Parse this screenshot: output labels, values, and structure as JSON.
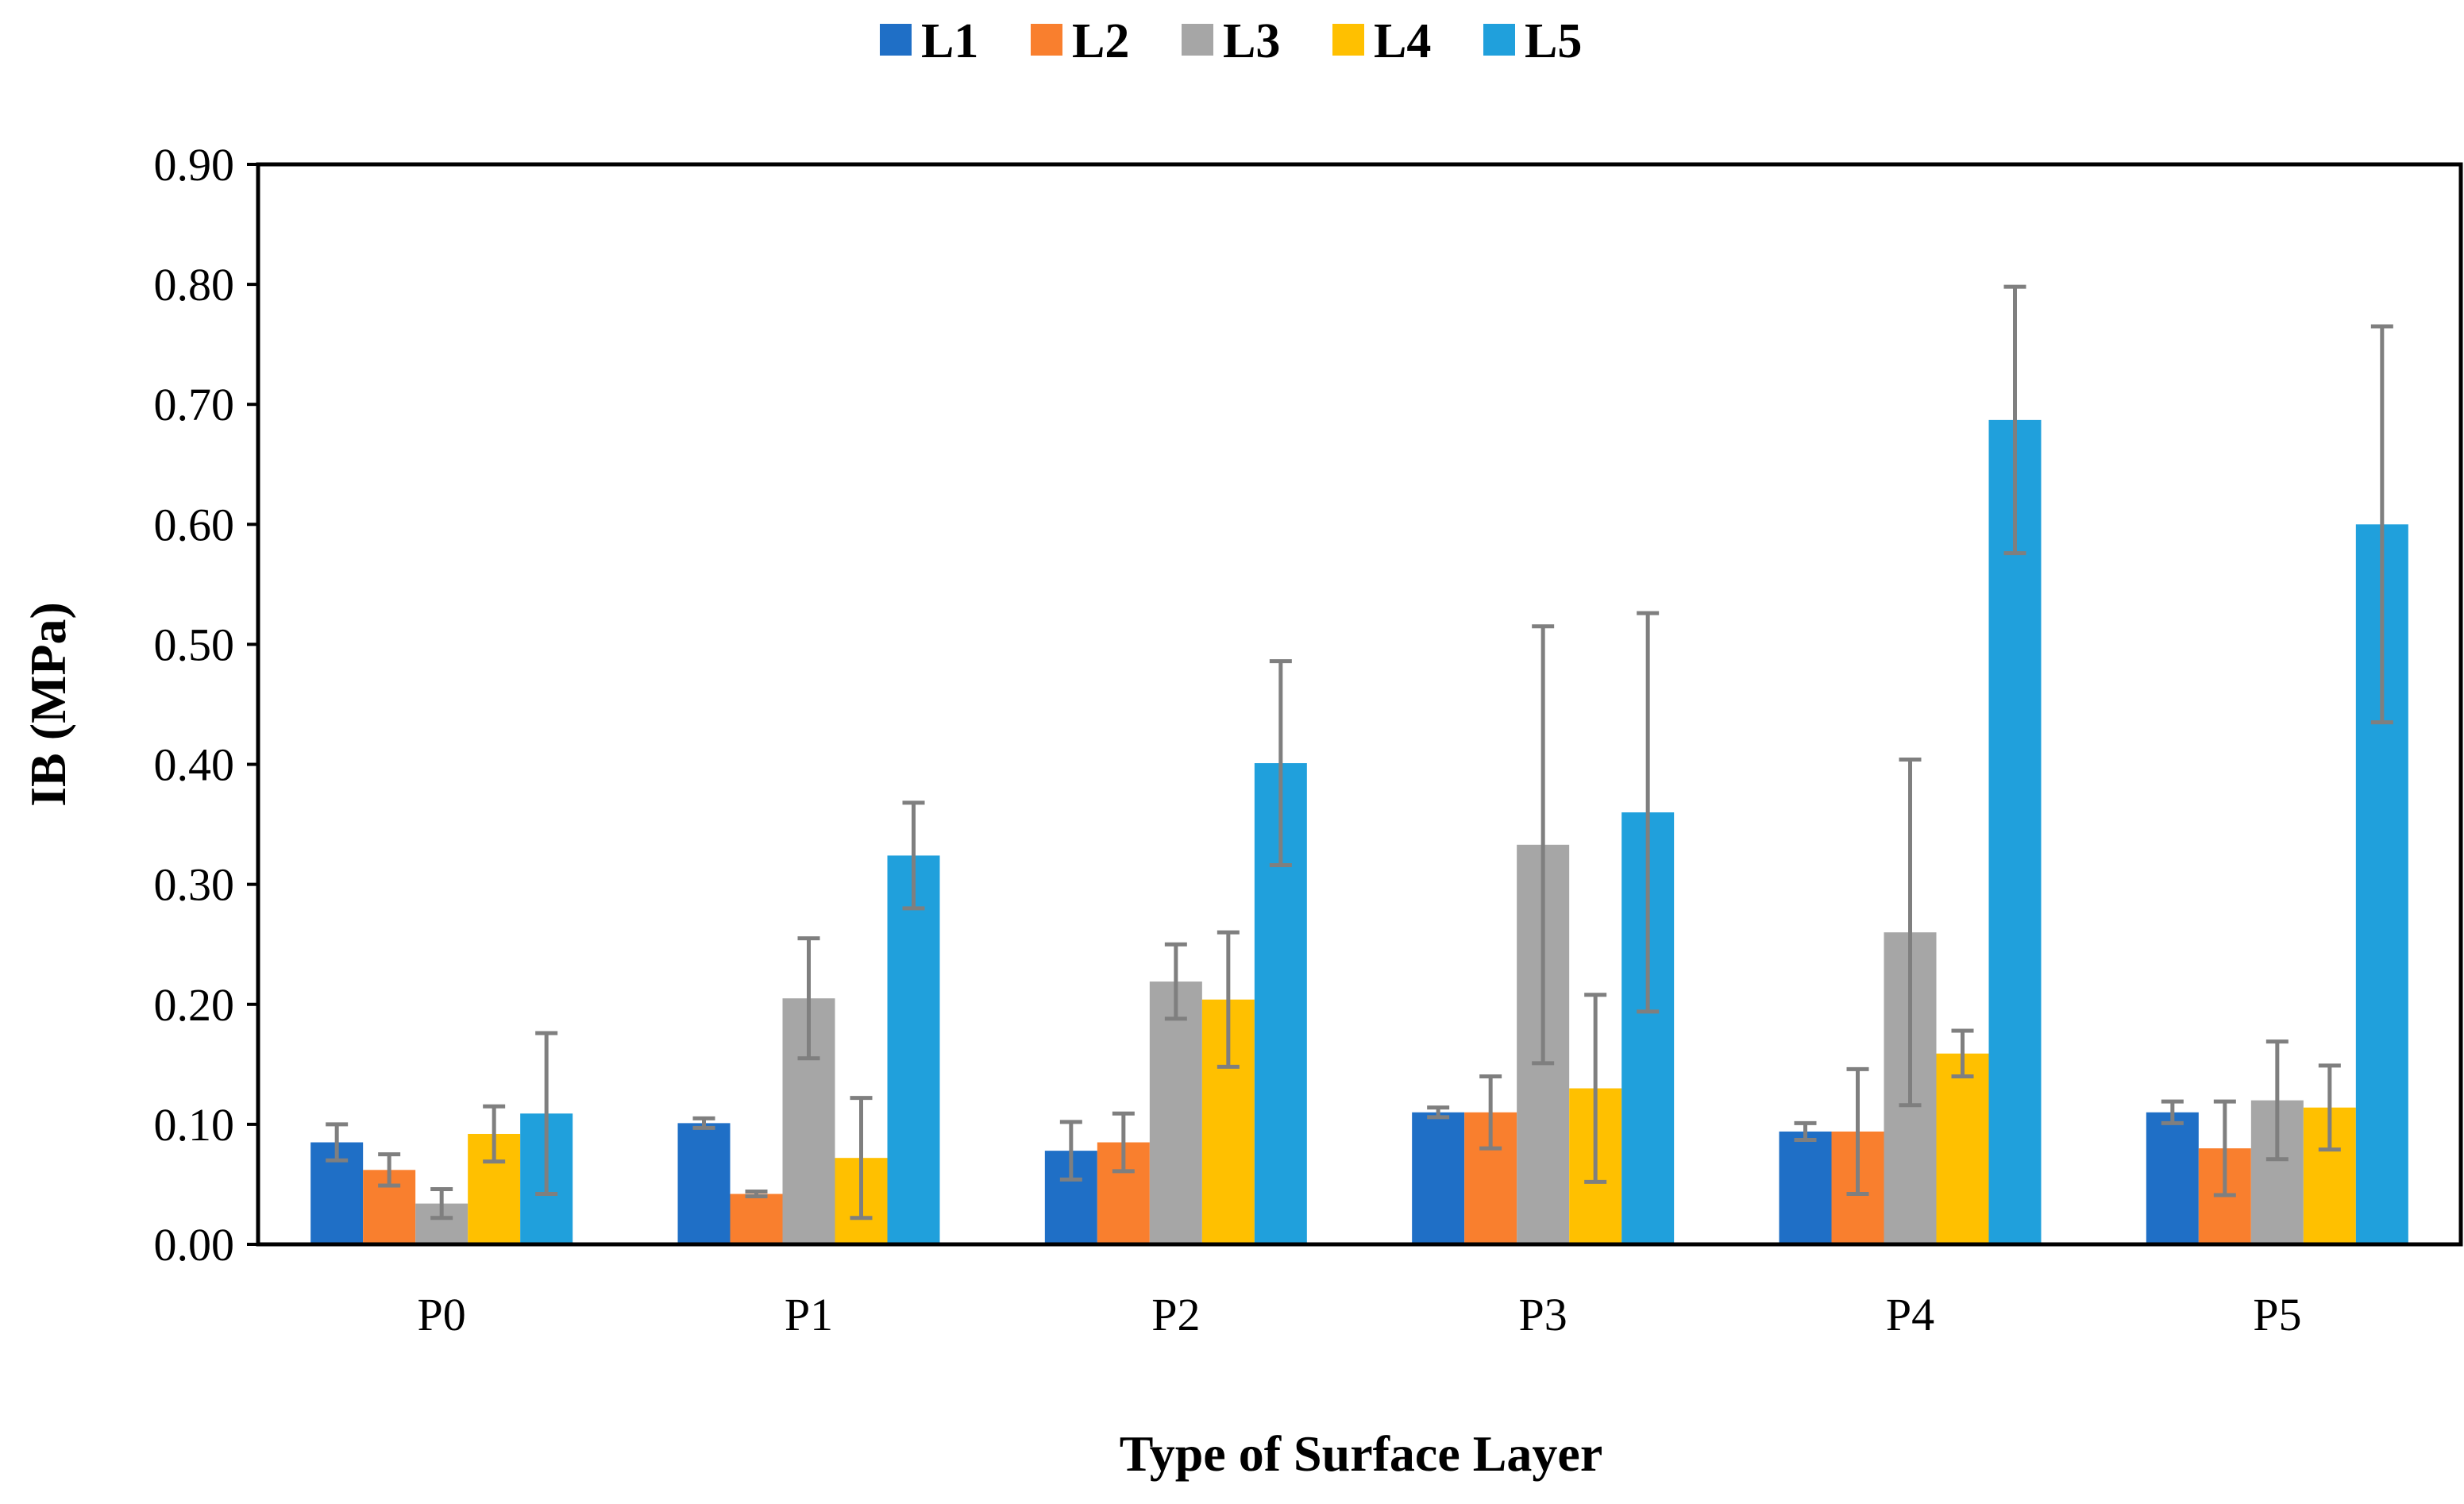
{
  "chart_data": {
    "type": "bar",
    "title": "",
    "xlabel": "Type of Surface Layer",
    "ylabel": "IB (MPa)",
    "ylim": [
      0,
      0.9
    ],
    "ytick_labels": [
      "0.00",
      "0.10",
      "0.20",
      "0.30",
      "0.40",
      "0.50",
      "0.60",
      "0.70",
      "0.80",
      "0.90"
    ],
    "ytick_values": [
      0,
      0.1,
      0.2,
      0.3,
      0.4,
      0.5,
      0.6,
      0.7,
      0.8,
      0.9
    ],
    "grid": false,
    "legend_position": "top-center",
    "categories": [
      "P0",
      "P1",
      "P2",
      "P3",
      "P4",
      "P5"
    ],
    "series": [
      {
        "name": "L1",
        "color": "#1f6fc6",
        "values": [
          0.085,
          0.101,
          0.078,
          0.11,
          0.094,
          0.11
        ],
        "errors": [
          0.015,
          0.004,
          0.024,
          0.004,
          0.007,
          0.009
        ]
      },
      {
        "name": "L2",
        "color": "#f97f2e",
        "values": [
          0.062,
          0.042,
          0.085,
          0.11,
          0.094,
          0.08
        ],
        "errors": [
          0.013,
          0.002,
          0.024,
          0.03,
          0.052,
          0.039
        ]
      },
      {
        "name": "L3",
        "color": "#a6a6a6",
        "values": [
          0.034,
          0.205,
          0.219,
          0.333,
          0.26,
          0.12
        ],
        "errors": [
          0.012,
          0.05,
          0.031,
          0.182,
          0.144,
          0.049
        ]
      },
      {
        "name": "L4",
        "color": "#ffc000",
        "values": [
          0.092,
          0.072,
          0.204,
          0.13,
          0.159,
          0.114
        ],
        "errors": [
          0.023,
          0.05,
          0.056,
          0.078,
          0.019,
          0.035
        ]
      },
      {
        "name": "L5",
        "color": "#20a0dc",
        "values": [
          0.109,
          0.324,
          0.401,
          0.36,
          0.687,
          0.6
        ],
        "errors": [
          0.067,
          0.044,
          0.085,
          0.166,
          0.111,
          0.165
        ]
      }
    ],
    "error_bar_color": "#7f7f7f"
  }
}
